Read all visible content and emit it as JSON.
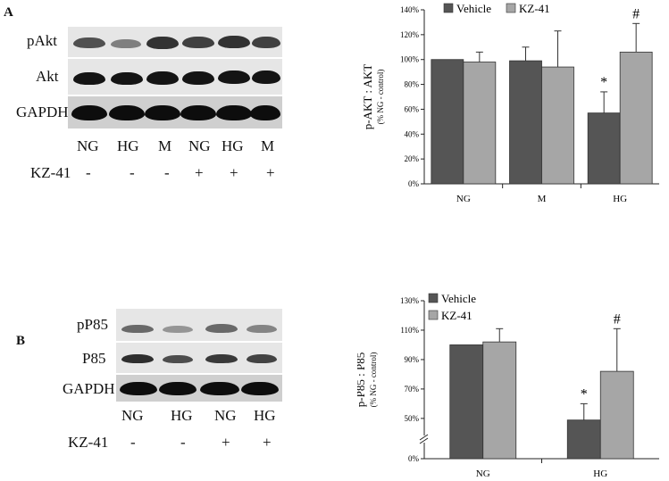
{
  "panelA": {
    "label": "A",
    "blot_rows": [
      "pAkt",
      "Akt",
      "GAPDH"
    ],
    "lanes": [
      "NG",
      "HG",
      "M",
      "NG",
      "HG",
      "M"
    ],
    "treatment_label": "KZ-41",
    "treatment_signs": [
      "-",
      "-",
      "-",
      "+",
      "+",
      "+"
    ]
  },
  "panelB": {
    "label": "B",
    "blot_rows": [
      "pP85",
      "P85",
      "GAPDH"
    ],
    "lanes": [
      "NG",
      "HG",
      "NG",
      "HG"
    ],
    "treatment_label": "KZ-41",
    "treatment_signs": [
      "-",
      "-",
      "+",
      "+"
    ]
  },
  "colors": {
    "vehicle": "#555555",
    "kz41": "#a6a6a6"
  },
  "chart_data": [
    {
      "type": "bar",
      "ylabel": "p-AKT : AKT",
      "ylabel_sub": "(% NG - control)",
      "categories": [
        "NG",
        "M",
        "HG"
      ],
      "series": [
        {
          "name": "Vehicle",
          "values": [
            100,
            99,
            57
          ],
          "errors": [
            0,
            11,
            17
          ]
        },
        {
          "name": "KZ-41",
          "values": [
            98,
            94,
            106
          ],
          "errors": [
            8,
            29,
            23
          ]
        }
      ],
      "annotations": [
        {
          "category": "HG",
          "series": "Vehicle",
          "text": "*"
        },
        {
          "category": "HG",
          "series": "KZ-41",
          "text": "#"
        }
      ],
      "ylim": [
        0,
        140
      ],
      "yticks": [
        0,
        20,
        40,
        60,
        80,
        100,
        120,
        140
      ],
      "ytick_labels": [
        "0%",
        "20%",
        "40%",
        "60%",
        "80%",
        "100%",
        "120%",
        "140%"
      ],
      "legend": "top",
      "grid": false
    },
    {
      "type": "bar",
      "ylabel": "p-P85 : P85",
      "ylabel_sub": "(% NG - control)",
      "categories": [
        "NG",
        "HG"
      ],
      "series": [
        {
          "name": "Vehicle",
          "values": [
            100,
            48
          ],
          "errors": [
            0,
            12
          ]
        },
        {
          "name": "KZ-41",
          "values": [
            102,
            82
          ],
          "errors": [
            9,
            29
          ]
        }
      ],
      "annotations": [
        {
          "category": "HG",
          "series": "Vehicle",
          "text": "*"
        },
        {
          "category": "HG",
          "series": "KZ-41",
          "text": "#"
        }
      ],
      "axis_break": true,
      "yticks": [
        0,
        50,
        70,
        90,
        110,
        130
      ],
      "ytick_labels": [
        "0%",
        "50%",
        "70%",
        "90%",
        "110%",
        "130%"
      ],
      "ylim": [
        0,
        130
      ],
      "legend": "top-left",
      "grid": false
    }
  ]
}
